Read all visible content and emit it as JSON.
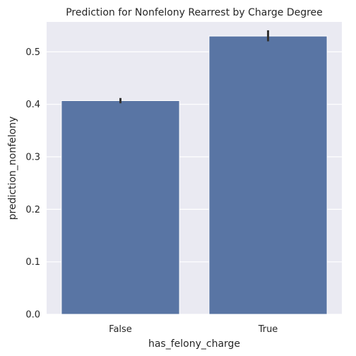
{
  "chart_data": {
    "type": "bar",
    "title": "Prediction for Nonfelony Rearrest by Charge Degree",
    "xlabel": "has_felony_charge",
    "ylabel": "prediction_nonfelony",
    "categories": [
      "False",
      "True"
    ],
    "values": [
      0.407,
      0.53
    ],
    "error_bars": [
      [
        0.402,
        0.412
      ],
      [
        0.52,
        0.541
      ]
    ],
    "ylim": [
      0,
      0.557
    ],
    "yticks": [
      0.0,
      0.1,
      0.2,
      0.3,
      0.4,
      0.5
    ],
    "ytick_labels": [
      "0.0",
      "0.1",
      "0.2",
      "0.3",
      "0.4",
      "0.5"
    ],
    "grid": true,
    "colors": {
      "bar": "#5975a4",
      "plot_background": "#eaeaf2",
      "grid": "#ffffff",
      "error_bar": "#333333"
    }
  }
}
